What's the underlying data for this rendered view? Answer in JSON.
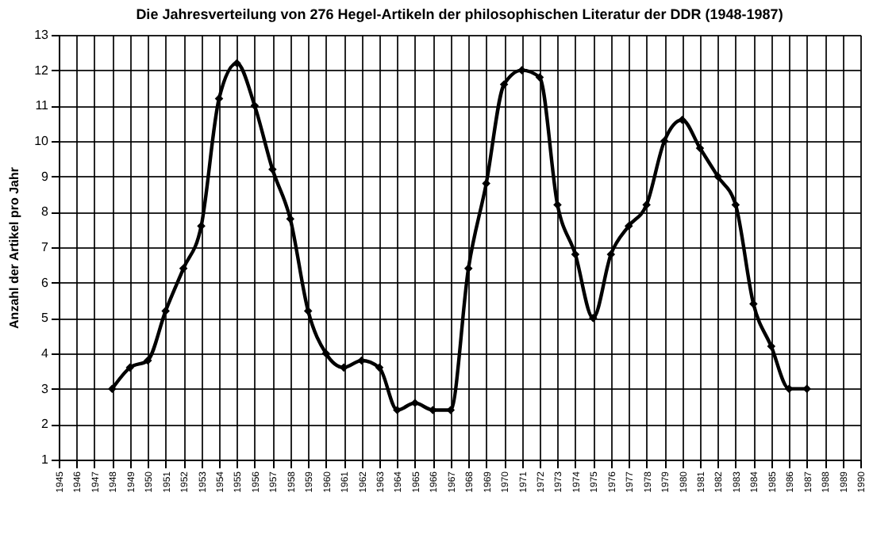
{
  "chart_data": {
    "type": "line",
    "title": "Die Jahresverteilung von 276 Hegel-Artikeln der philosophischen Literatur der DDR (1948-1987)",
    "ylabel": "Anzahl der Artikel pro Jahr",
    "x": [
      1948,
      1949,
      1950,
      1951,
      1952,
      1953,
      1954,
      1955,
      1956,
      1957,
      1958,
      1959,
      1960,
      1961,
      1962,
      1963,
      1964,
      1965,
      1966,
      1967,
      1968,
      1969,
      1970,
      1971,
      1972,
      1973,
      1974,
      1975,
      1976,
      1977,
      1978,
      1979,
      1980,
      1981,
      1982,
      1983,
      1984,
      1985,
      1986,
      1987
    ],
    "series": [
      {
        "color": "#000000",
        "values": [
          3.0,
          3.6,
          3.8,
          5.2,
          6.4,
          7.6,
          11.2,
          12.2,
          11.0,
          9.2,
          7.8,
          5.2,
          4.0,
          3.6,
          3.8,
          3.6,
          2.4,
          2.6,
          2.4,
          2.4,
          6.4,
          8.8,
          11.6,
          12.0,
          11.8,
          8.2,
          6.8,
          5.0,
          6.8,
          7.6,
          8.2,
          10.0,
          10.6,
          9.8,
          9.0,
          8.2,
          5.4,
          4.2,
          3.0,
          3.0
        ]
      }
    ],
    "xlim": [
      1945,
      1990
    ],
    "xticks": [
      1945,
      1946,
      1947,
      1948,
      1949,
      1950,
      1951,
      1952,
      1953,
      1954,
      1955,
      1956,
      1957,
      1958,
      1959,
      1960,
      1961,
      1962,
      1963,
      1964,
      1965,
      1966,
      1967,
      1968,
      1969,
      1970,
      1971,
      1972,
      1973,
      1974,
      1975,
      1976,
      1977,
      1978,
      1979,
      1980,
      1981,
      1982,
      1983,
      1984,
      1985,
      1986,
      1987,
      1988,
      1989,
      1990
    ],
    "ylim": [
      1,
      13
    ],
    "yticks": [
      1,
      2,
      3,
      4,
      5,
      6,
      7,
      8,
      9,
      10,
      11,
      12,
      13
    ],
    "grid": true,
    "legend": false,
    "marker": "diamond",
    "line_style": "solid"
  }
}
